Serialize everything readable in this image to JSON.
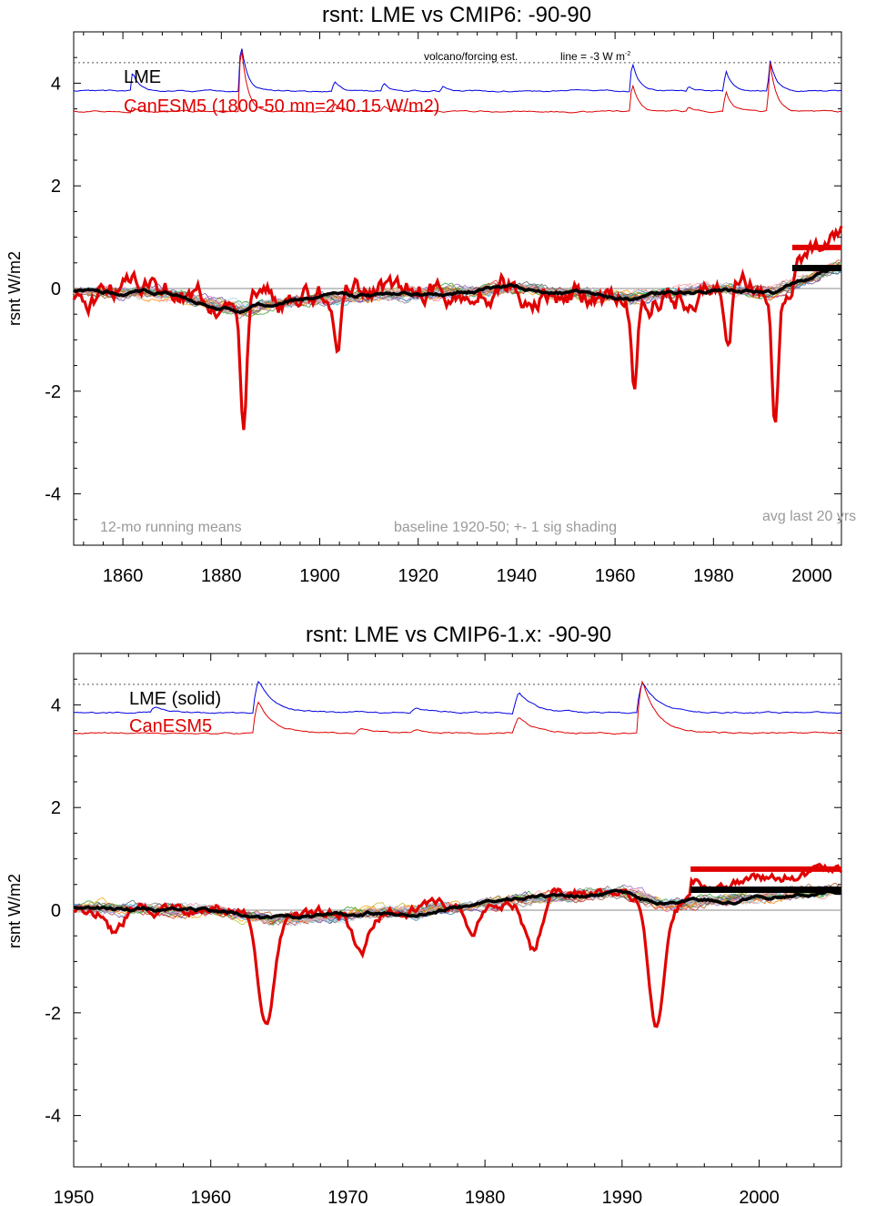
{
  "chart_data": [
    {
      "type": "line",
      "title": "rsnt: LME vs CMIP6: -90-90",
      "ylabel": "rsnt W/m2",
      "xlabel": "",
      "xlim": [
        1850,
        2006
      ],
      "ylim": [
        -5,
        5
      ],
      "x_ticks": [
        1860,
        1880,
        1900,
        1920,
        1940,
        1960,
        1980,
        2000
      ],
      "y_ticks": [
        -4,
        -2,
        0,
        2,
        4
      ],
      "legend": [
        "LME",
        "CanESM5 (1800-50 mn=240.15 W/m2)"
      ],
      "legend_colors": [
        "#000000",
        "#e00000"
      ],
      "annotations": {
        "volcano": "volcano/forcing est.",
        "line": "line = -3 W m",
        "line_sup": "-2",
        "running_mean": "12-mo running means",
        "baseline": "baseline 1920-50; +- 1 sig shading",
        "avg": "avg last 20 yrs"
      },
      "reference_level": 4.4,
      "forcing_series": [
        {
          "name": "LME forcing",
          "color": "#0000e0",
          "base": 3.85,
          "peaks": [
            [
              1862,
              0.35
            ],
            [
              1884,
              0.95
            ],
            [
              1903,
              0.2
            ],
            [
              1913,
              0.15
            ],
            [
              1925,
              0.1
            ],
            [
              1963.5,
              0.6
            ],
            [
              1982.5,
              0.4
            ],
            [
              1991.5,
              0.6
            ],
            [
              1975,
              0.1
            ]
          ]
        },
        {
          "name": "CanESM5 forcing",
          "color": "#e00000",
          "base": 3.45,
          "peaks": [
            [
              1862,
              0.1
            ],
            [
              1884,
              1.35
            ],
            [
              1903,
              0.15
            ],
            [
              1913,
              0.1
            ],
            [
              1963.5,
              0.55
            ],
            [
              1982.5,
              0.4
            ],
            [
              1991.5,
              0.95
            ],
            [
              1975,
              0.1
            ]
          ]
        }
      ],
      "canesm5_dips": [
        [
          1884.5,
          -2.75
        ],
        [
          1903.5,
          -1.25
        ],
        [
          1964,
          -2.05
        ],
        [
          1983,
          -1.1
        ],
        [
          1992.5,
          -2.45
        ]
      ],
      "lme_mean_key": [
        [
          1850,
          -0.05
        ],
        [
          1870,
          -0.1
        ],
        [
          1884,
          -0.4
        ],
        [
          1900,
          -0.2
        ],
        [
          1920,
          -0.1
        ],
        [
          1940,
          0.0
        ],
        [
          1963.5,
          -0.2
        ],
        [
          1980,
          0.0
        ],
        [
          1992,
          -0.1
        ],
        [
          2006,
          0.45
        ]
      ],
      "avg_last20": {
        "canesm5": 0.8,
        "lme": 0.4,
        "x_range": [
          1996,
          2006
        ]
      }
    },
    {
      "type": "line",
      "title": "rsnt: LME vs CMIP6-1.x: -90-90",
      "ylabel": "rsnt W/m2",
      "xlabel": "",
      "xlim": [
        1950,
        2006
      ],
      "ylim": [
        -5,
        5
      ],
      "x_ticks": [
        1950,
        1960,
        1970,
        1980,
        1990,
        2000
      ],
      "y_ticks": [
        -4,
        -2,
        0,
        2,
        4
      ],
      "legend": [
        "LME (solid)",
        "CanESM5"
      ],
      "legend_colors": [
        "#000000",
        "#e00000"
      ],
      "reference_level": 4.4,
      "forcing_series": [
        {
          "name": "LME forcing",
          "color": "#0000e0",
          "base": 3.85,
          "peaks": [
            [
              1956,
              0.1
            ],
            [
              1963.5,
              0.6
            ],
            [
              1975,
              0.1
            ],
            [
              1982.5,
              0.4
            ],
            [
              1991.5,
              0.6
            ]
          ]
        },
        {
          "name": "CanESM5 forcing",
          "color": "#e00000",
          "base": 3.45,
          "peaks": [
            [
              1963.5,
              0.6
            ],
            [
              1971,
              0.1
            ],
            [
              1982.5,
              0.3
            ],
            [
              1991.5,
              1.0
            ],
            [
              1975,
              0.05
            ]
          ]
        }
      ],
      "canesm5_dips": [
        [
          1953,
          -0.45
        ],
        [
          1964,
          -2.05
        ],
        [
          1971,
          -0.75
        ],
        [
          1979,
          -0.6
        ],
        [
          1983.5,
          -1.1
        ],
        [
          1992.5,
          -2.45
        ]
      ],
      "lme_mean_key": [
        [
          1950,
          0.05
        ],
        [
          1960,
          0.0
        ],
        [
          1964.5,
          -0.2
        ],
        [
          1975,
          0.0
        ],
        [
          1982,
          0.2
        ],
        [
          1990,
          0.35
        ],
        [
          1993,
          0.1
        ],
        [
          2006,
          0.4
        ]
      ],
      "avg_last20": {
        "canesm5": 0.8,
        "lme": 0.4,
        "x_range": [
          1995,
          2006
        ]
      }
    }
  ]
}
